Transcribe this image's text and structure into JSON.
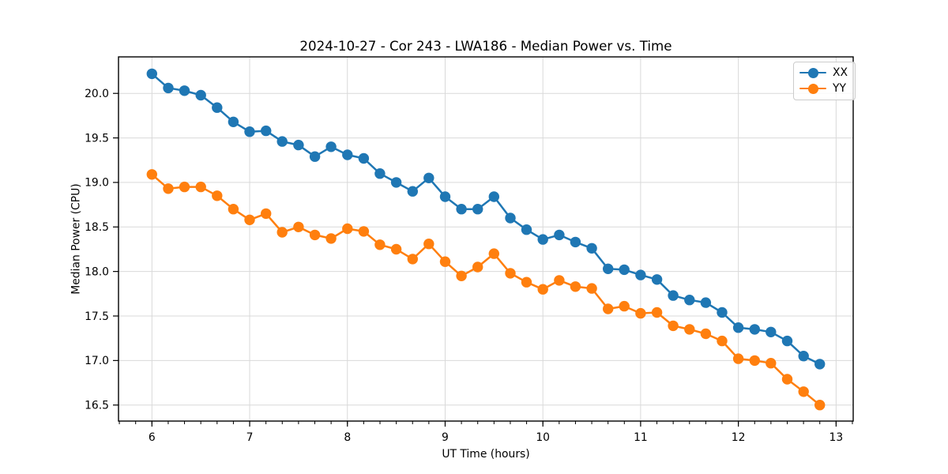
{
  "figure": {
    "background": "#ffffff"
  },
  "chart_data": {
    "type": "line",
    "title": "2024-10-27 - Cor 243 - LWA186 - Median Power vs. Time",
    "xlabel": "UT Time (hours)",
    "ylabel": "Median Power (CPU)",
    "xlim": [
      5.658,
      13.175
    ],
    "ylim": [
      16.32,
      20.41
    ],
    "xticks": [
      6,
      7,
      8,
      9,
      10,
      11,
      12,
      13
    ],
    "yticks": [
      16.5,
      17.0,
      17.5,
      18.0,
      18.5,
      19.0,
      19.5,
      20.0
    ],
    "x_minor_step": 0.166667,
    "grid": true,
    "grid_color": "#d9d9d9",
    "axis_color": "#000000",
    "legend_position": "upper right",
    "marker": "circle",
    "x": [
      6.0,
      6.167,
      6.333,
      6.5,
      6.667,
      6.833,
      7.0,
      7.167,
      7.333,
      7.5,
      7.667,
      7.833,
      8.0,
      8.167,
      8.333,
      8.5,
      8.667,
      8.833,
      9.0,
      9.167,
      9.333,
      9.5,
      9.667,
      9.833,
      10.0,
      10.167,
      10.333,
      10.5,
      10.667,
      10.833,
      11.0,
      11.167,
      11.333,
      11.5,
      11.667,
      11.833,
      12.0,
      12.167,
      12.333,
      12.5,
      12.667,
      12.833
    ],
    "series": [
      {
        "name": "XX",
        "color": "#1f77b4",
        "values": [
          20.22,
          20.06,
          20.03,
          19.98,
          19.84,
          19.68,
          19.57,
          19.58,
          19.46,
          19.42,
          19.29,
          19.4,
          19.31,
          19.27,
          19.1,
          19.0,
          18.9,
          19.05,
          18.84,
          18.7,
          18.7,
          18.84,
          18.6,
          18.47,
          18.36,
          18.41,
          18.33,
          18.26,
          18.03,
          18.02,
          17.96,
          17.91,
          17.73,
          17.68,
          17.65,
          17.54,
          17.37,
          17.35,
          17.32,
          17.22,
          17.05,
          16.96
        ]
      },
      {
        "name": "YY",
        "color": "#ff7f0e",
        "values": [
          19.09,
          18.93,
          18.95,
          18.95,
          18.85,
          18.7,
          18.58,
          18.65,
          18.44,
          18.5,
          18.41,
          18.37,
          18.48,
          18.45,
          18.3,
          18.25,
          18.14,
          18.31,
          18.11,
          17.95,
          18.05,
          18.2,
          17.98,
          17.88,
          17.8,
          17.9,
          17.83,
          17.81,
          17.58,
          17.61,
          17.53,
          17.54,
          17.39,
          17.35,
          17.3,
          17.22,
          17.02,
          17.0,
          16.97,
          16.79,
          16.65,
          16.5
        ]
      }
    ]
  }
}
